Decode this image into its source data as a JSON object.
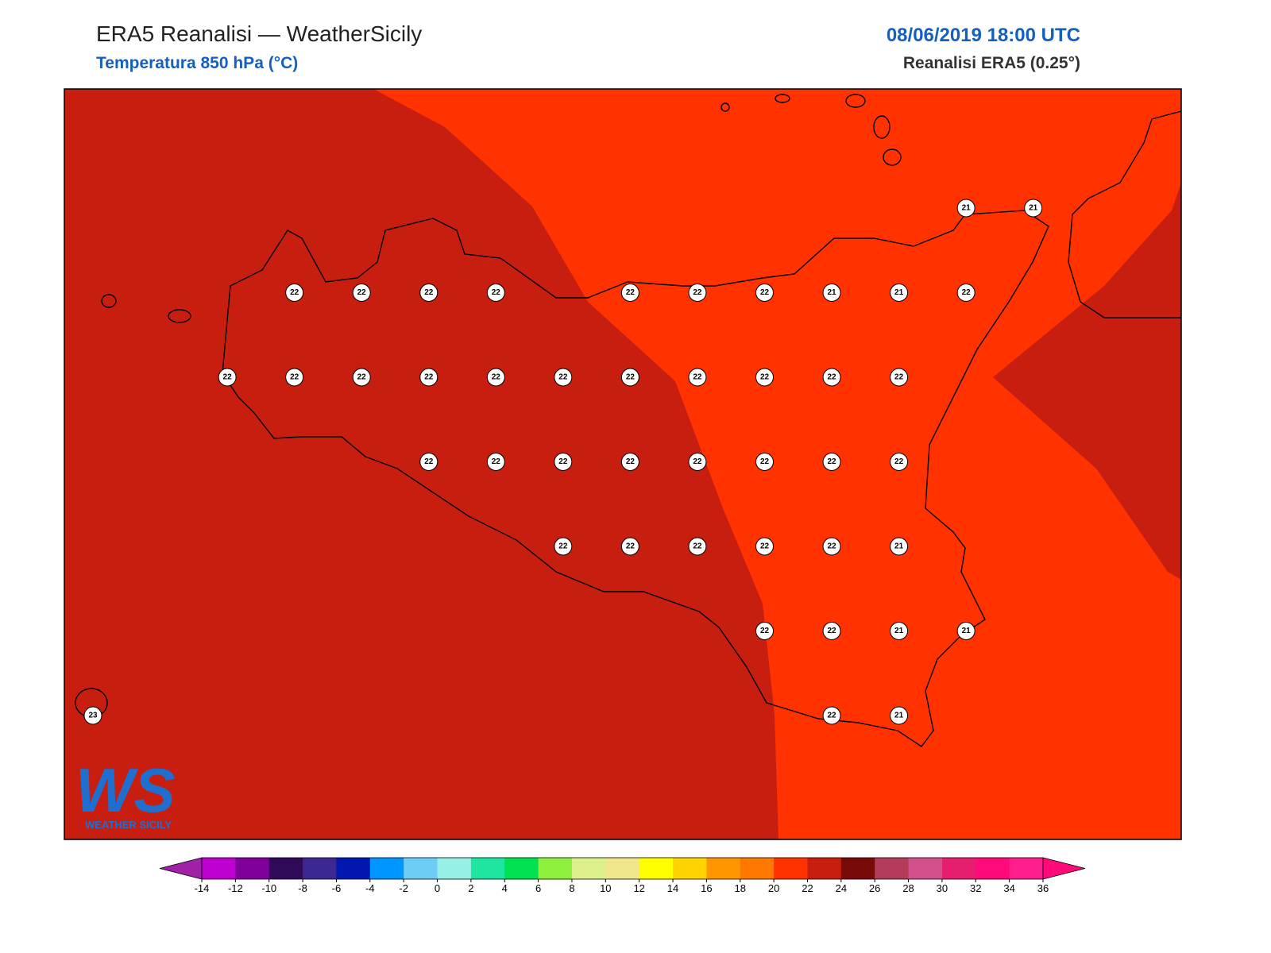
{
  "header": {
    "title": "ERA5 Reanalisi — WeatherSicily",
    "subtitle": "Temperatura 850 hPa (°C)",
    "date": "08/06/2019 18:00 UTC",
    "source": "Reanalisi ERA5 (0.25°)"
  },
  "map": {
    "grid": [
      [
        null,
        null,
        null,
        null,
        null,
        null,
        null,
        null,
        null,
        null,
        null,
        null,
        null,
        21,
        21
      ],
      [
        null,
        null,
        null,
        22,
        22,
        22,
        22,
        null,
        22,
        22,
        22,
        21,
        21,
        22,
        null
      ],
      [
        null,
        null,
        22,
        22,
        22,
        22,
        22,
        22,
        22,
        22,
        22,
        22,
        22,
        null,
        null
      ],
      [
        null,
        null,
        null,
        null,
        null,
        22,
        22,
        22,
        22,
        22,
        22,
        22,
        22,
        null,
        null
      ],
      [
        null,
        null,
        null,
        null,
        null,
        null,
        null,
        22,
        22,
        22,
        22,
        22,
        21,
        null,
        null
      ],
      [
        null,
        null,
        null,
        null,
        null,
        null,
        null,
        null,
        null,
        null,
        22,
        22,
        21,
        21,
        null
      ],
      [
        23,
        null,
        null,
        null,
        null,
        null,
        null,
        null,
        null,
        null,
        null,
        22,
        21,
        null,
        null
      ]
    ]
  },
  "logo": {
    "mark": "WS",
    "text": "WEATHER SICILY"
  },
  "colorbar": {
    "ticks": [
      -14,
      -12,
      -10,
      -8,
      -6,
      -4,
      -2,
      0,
      2,
      4,
      6,
      8,
      10,
      12,
      14,
      16,
      18,
      20,
      22,
      24,
      26,
      28,
      30,
      32,
      34,
      36
    ],
    "colors": [
      "#c000d0",
      "#80009c",
      "#2e0a58",
      "#3c2890",
      "#0018b0",
      "#0096ff",
      "#6ecdf5",
      "#96f0e6",
      "#1ee6a0",
      "#00e150",
      "#8cf03c",
      "#dcf08c",
      "#f0e68c",
      "#ffff00",
      "#ffd200",
      "#ff9600",
      "#ff7800",
      "#ff3200",
      "#c81e0f",
      "#780a0a",
      "#b43c5a",
      "#d2508c",
      "#e61e6e",
      "#ff0a78",
      "#ff1e8c"
    ],
    "under": "#a020a8",
    "over": "#ff0a78"
  }
}
